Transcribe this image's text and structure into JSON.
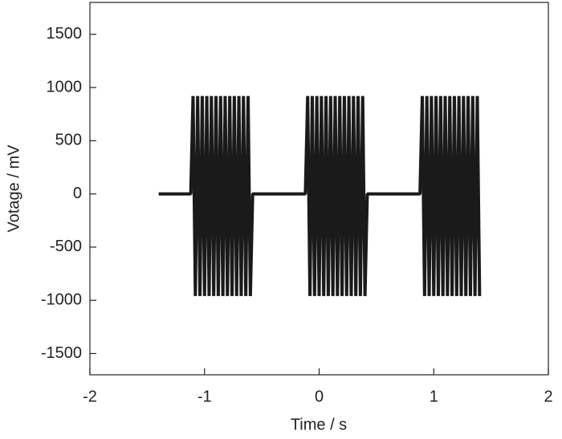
{
  "chart_data": {
    "type": "line",
    "xlabel": "Time / s",
    "ylabel": "Votage / mV",
    "xlim": [
      -2,
      2
    ],
    "xticks": [
      -2,
      -1,
      0,
      1,
      2
    ],
    "ylim": [
      -1700,
      1800
    ],
    "yticks": [
      -1500,
      -1000,
      -500,
      0,
      500,
      1000,
      1500
    ],
    "series": [
      {
        "color": "#1a1a1a",
        "x": [
          -1.4,
          -1.12,
          -1.1,
          -1.08,
          -1.06,
          -1.04,
          -1.02,
          -1,
          -0.98,
          -0.96,
          -0.94,
          -0.92,
          -0.9,
          -0.88,
          -0.86,
          -0.84,
          -0.82,
          -0.8,
          -0.78,
          -0.76,
          -0.74,
          -0.72,
          -0.7,
          -0.68,
          -0.66,
          -0.64,
          -0.62,
          -0.6,
          -0.58,
          -0.12,
          -0.1,
          -0.08,
          -0.06,
          -0.04,
          -0.02,
          0,
          0.02,
          0.04,
          0.06,
          0.08,
          0.1,
          0.12,
          0.14,
          0.16,
          0.18,
          0.2,
          0.22,
          0.24,
          0.26,
          0.28,
          0.3,
          0.32,
          0.34,
          0.36,
          0.38,
          0.4,
          0.42,
          0.88,
          0.9,
          0.92,
          0.94,
          0.96,
          0.98,
          1,
          1.02,
          1.04,
          1.06,
          1.08,
          1.1,
          1.12,
          1.14,
          1.16,
          1.18,
          1.2,
          1.22,
          1.24,
          1.26,
          1.28,
          1.3,
          1.32,
          1.34,
          1.36,
          1.38,
          1.4
        ],
        "values": [
          0,
          0,
          920,
          -960,
          920,
          -960,
          920,
          -960,
          920,
          -960,
          920,
          -960,
          920,
          -960,
          920,
          -960,
          920,
          -960,
          920,
          -960,
          920,
          -960,
          920,
          -960,
          920,
          -960,
          920,
          -960,
          0,
          0,
          920,
          -960,
          920,
          -960,
          920,
          -960,
          920,
          -960,
          920,
          -960,
          920,
          -960,
          920,
          -960,
          920,
          -960,
          920,
          -960,
          920,
          -960,
          920,
          -960,
          920,
          -960,
          920,
          -960,
          0,
          0,
          920,
          -960,
          920,
          -960,
          920,
          -960,
          920,
          -960,
          920,
          -960,
          920,
          -960,
          920,
          -960,
          920,
          -960,
          920,
          -960,
          920,
          -960,
          920,
          -960,
          920,
          -960,
          920,
          -960
        ]
      }
    ]
  }
}
